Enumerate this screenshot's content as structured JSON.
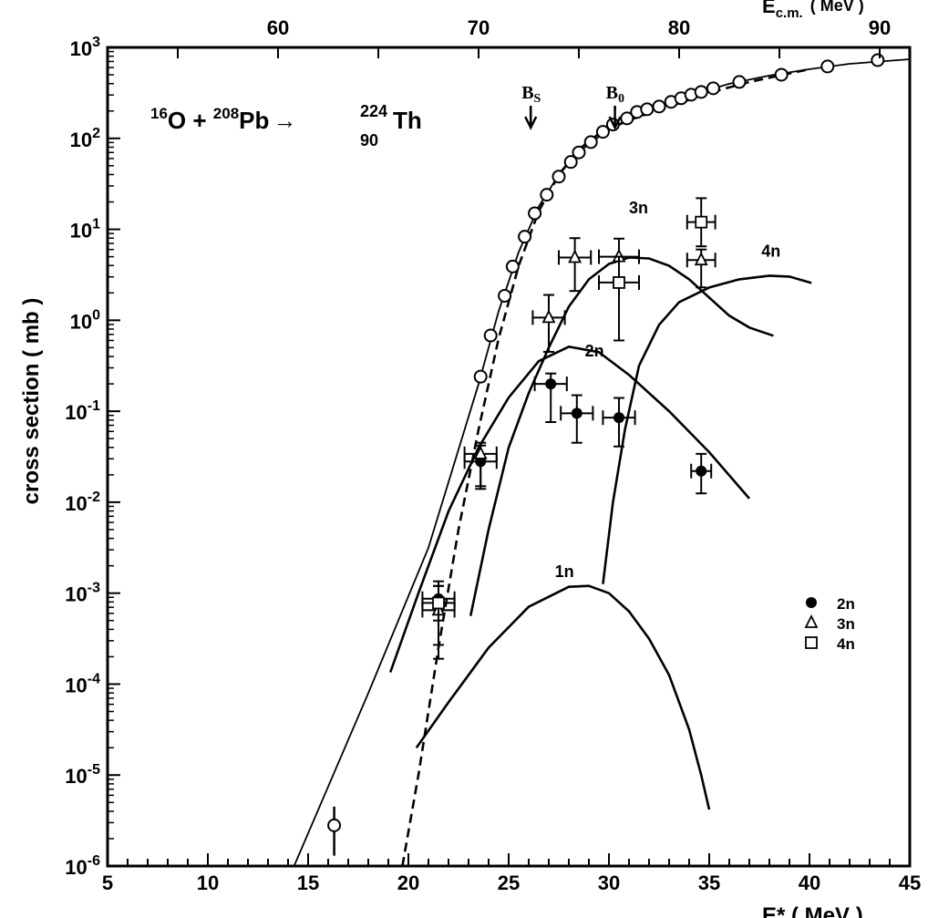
{
  "chart_data": {
    "type": "scatter",
    "title": "",
    "reaction": {
      "p1": "16",
      "t1": "O + ",
      "p2": "208",
      "t2": "Pb",
      "arrow": "→",
      "p3": "224",
      "z3": "90",
      "t3": "Th"
    },
    "xlabel": "E* ( MeV )",
    "xlabel_top": "E",
    "xlabel_top_sub": "c.m.",
    "xlabel_top_unit": "( MeV )",
    "ylabel": "cross section   ( mb )",
    "xlim": [
      5,
      45
    ],
    "ylim": [
      1e-06,
      1000
    ],
    "yscale": "log",
    "xticks": [
      "5",
      "10",
      "15",
      "20",
      "25",
      "30",
      "35",
      "40",
      "45"
    ],
    "yticks": [
      "-6",
      "-5",
      "-4",
      "-3",
      "-2",
      "-1",
      "0",
      "1",
      "2",
      "3"
    ],
    "ytick_base": "10",
    "top_axis_offset": 46.5,
    "top_xticks": [
      "60",
      "70",
      "80",
      "90"
    ],
    "markers": [
      {
        "label": "B",
        "sub": "S",
        "x": 26.1
      },
      {
        "label": "B",
        "sub": "0",
        "x": 30.3
      }
    ],
    "curve_labels": [
      {
        "text": "1n",
        "x": 27.3,
        "y": 0.0015
      },
      {
        "text": "2n",
        "x": 28.8,
        "y": 0.4
      },
      {
        "text": "3n",
        "x": 31.0,
        "y": 15
      },
      {
        "text": "4n",
        "x": 37.6,
        "y": 5
      }
    ],
    "legend": {
      "position": "lower-right",
      "entries": [
        {
          "symbol": "filled-circle",
          "label": "2n"
        },
        {
          "symbol": "open-triangle",
          "label": "3n"
        },
        {
          "symbol": "open-square",
          "label": "4n"
        }
      ]
    },
    "fusion_data": {
      "symbol": "open-circle",
      "x": [
        23.6,
        24.1,
        24.8,
        25.2,
        25.8,
        26.3,
        26.9,
        27.5,
        28.1,
        28.5,
        29.1,
        29.7,
        30.2,
        30.9,
        31.4,
        31.9,
        32.5,
        33.1,
        33.6,
        34.1,
        34.6,
        35.2,
        36.5,
        38.6,
        40.9,
        43.4
      ],
      "y": [
        0.24,
        0.68,
        1.86,
        3.9,
        8.3,
        15,
        24,
        38,
        55,
        70,
        91,
        118,
        142,
        166,
        195,
        209,
        224,
        252,
        276,
        302,
        324,
        355,
        417,
        501,
        617,
        724
      ]
    },
    "fusion_low_point": {
      "x": 16.3,
      "y": 2.8e-06,
      "ylo": 1.3e-06,
      "yhi": 4.5e-06
    },
    "series": [
      {
        "name": "2n",
        "symbol": "filled-circle",
        "points": [
          {
            "x": 21.5,
            "y": 0.00087,
            "ylo": 0.00027,
            "yhi": 0.00135,
            "xerr": 0.8
          },
          {
            "x": 23.6,
            "y": 0.028,
            "ylo": 0.014,
            "yhi": 0.042,
            "xerr": 0.8
          },
          {
            "x": 27.1,
            "y": 0.2,
            "ylo": 0.076,
            "yhi": 0.26,
            "xerr": 0.8
          },
          {
            "x": 28.4,
            "y": 0.095,
            "ylo": 0.045,
            "yhi": 0.15,
            "xerr": 0.8
          },
          {
            "x": 30.5,
            "y": 0.085,
            "ylo": 0.041,
            "yhi": 0.14,
            "xerr": 0.8
          },
          {
            "x": 34.6,
            "y": 0.022,
            "ylo": 0.0125,
            "yhi": 0.034,
            "xerr": 0.5
          }
        ]
      },
      {
        "name": "3n",
        "symbol": "open-triangle",
        "points": [
          {
            "x": 21.5,
            "y": 0.00065,
            "ylo": 0.00019,
            "yhi": 0.0012,
            "xerr": 0.8
          },
          {
            "x": 23.6,
            "y": 0.034,
            "ylo": 0.015,
            "yhi": 0.045,
            "xerr": 0.8
          },
          {
            "x": 27.0,
            "y": 1.07,
            "ylo": 0.45,
            "yhi": 1.9,
            "xerr": 0.8
          },
          {
            "x": 28.3,
            "y": 4.9,
            "ylo": 2.1,
            "yhi": 8.0,
            "xerr": 0.8
          },
          {
            "x": 30.5,
            "y": 5.0,
            "ylo": 2.7,
            "yhi": 7.9,
            "xerr": 1.0
          },
          {
            "x": 34.6,
            "y": 4.6,
            "ylo": 2.3,
            "yhi": 6.0,
            "xerr": 0.7
          }
        ]
      },
      {
        "name": "4n",
        "symbol": "open-square",
        "points": [
          {
            "x": 21.5,
            "y": 0.00078,
            "ylo": 0.0005,
            "yhi": 0.0012,
            "xerr": 0.8
          },
          {
            "x": 30.5,
            "y": 2.6,
            "ylo": 0.6,
            "yhi": 5.0,
            "xerr": 1.0
          },
          {
            "x": 34.6,
            "y": 12,
            "ylo": 6.5,
            "yhi": 22,
            "xerr": 0.7
          }
        ]
      }
    ],
    "curves": [
      {
        "id": "fusion-calc",
        "style": "solid-thin",
        "x": [
          14.3,
          18,
          21,
          23.5,
          24.5,
          25.5,
          26.5,
          27.5,
          28.5,
          30,
          32,
          34,
          36,
          38,
          40,
          42,
          45
        ],
        "log10y": [
          -6,
          -4.1,
          -2.5,
          -0.7,
          0.1,
          0.75,
          1.25,
          1.6,
          1.85,
          2.1,
          2.32,
          2.47,
          2.6,
          2.69,
          2.76,
          2.82,
          2.87
        ]
      },
      {
        "id": "fusion-dashed",
        "style": "dashed",
        "x": [
          19.7,
          20.5,
          21.5,
          22.5,
          23.5,
          24.5,
          25.5,
          26.5,
          27.5,
          28.5,
          29.5,
          31,
          33,
          35,
          37,
          40
        ],
        "log10y": [
          -6,
          -5,
          -3.6,
          -2.3,
          -1.2,
          -0.2,
          0.6,
          1.2,
          1.6,
          1.88,
          2.05,
          2.2,
          2.35,
          2.5,
          2.62,
          2.76
        ]
      },
      {
        "id": "1n",
        "style": "solid",
        "x": [
          20.4,
          22,
          24,
          26,
          28,
          29,
          30,
          31,
          32,
          33,
          34,
          34.6,
          35
        ],
        "log10y": [
          -4.7,
          -4.2,
          -3.6,
          -3.15,
          -2.93,
          -2.92,
          -3.0,
          -3.2,
          -3.5,
          -3.9,
          -4.5,
          -5.0,
          -5.38
        ]
      },
      {
        "id": "2n",
        "style": "solid",
        "x": [
          19.1,
          20.5,
          22,
          23.5,
          25,
          26.5,
          28,
          29.5,
          31,
          33,
          35,
          37
        ],
        "log10y": [
          -3.87,
          -3.0,
          -2.1,
          -1.4,
          -0.85,
          -0.45,
          -0.29,
          -0.35,
          -0.6,
          -1.0,
          -1.45,
          -1.96
        ]
      },
      {
        "id": "3n",
        "style": "solid",
        "x": [
          23.1,
          24,
          25,
          26,
          27,
          28,
          29,
          30,
          31,
          32,
          33,
          34,
          35,
          36,
          37,
          38.2
        ],
        "log10y": [
          -3.25,
          -2.3,
          -1.4,
          -0.8,
          -0.3,
          0.15,
          0.45,
          0.62,
          0.69,
          0.68,
          0.6,
          0.45,
          0.25,
          0.05,
          -0.08,
          -0.17
        ]
      },
      {
        "id": "4n",
        "style": "solid",
        "x": [
          29.7,
          30.2,
          30.8,
          31.5,
          32.5,
          33.5,
          35,
          36.5,
          38,
          39,
          40.1
        ],
        "log10y": [
          -2.9,
          -2.0,
          -1.2,
          -0.5,
          -0.05,
          0.2,
          0.36,
          0.45,
          0.49,
          0.48,
          0.41
        ]
      }
    ]
  }
}
